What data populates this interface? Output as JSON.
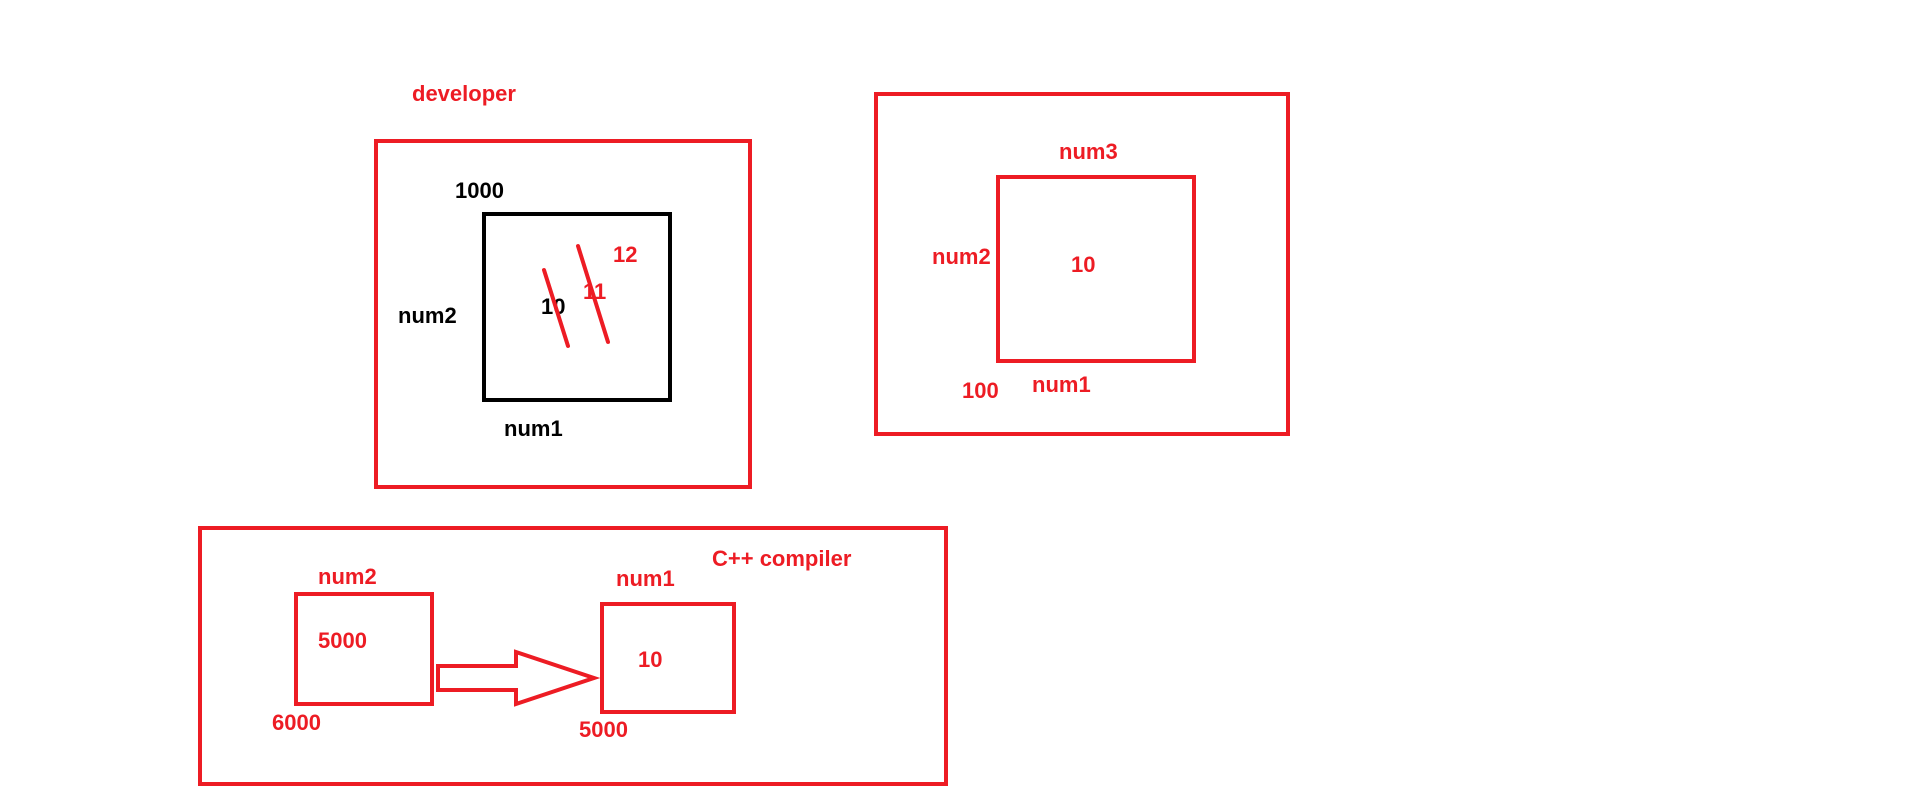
{
  "colors": {
    "red": "#ed1c24",
    "black": "#000000",
    "background": "#ffffff"
  },
  "developer_panel": {
    "title": "developer",
    "address_label": "1000",
    "variable_alias_label": "num2",
    "variable_name_label": "num1",
    "values": {
      "original": "10",
      "first_update": "11",
      "second_update": "12"
    }
  },
  "right_panel": {
    "top_alias_label": "num3",
    "left_alias_label": "num2",
    "variable_name_label": "num1",
    "address_label": "100",
    "value": "10"
  },
  "compiler_panel": {
    "title": "C++ compiler",
    "pointer_box": {
      "name_label": "num2",
      "value": "5000",
      "address_label": "6000"
    },
    "target_box": {
      "name_label": "num1",
      "value": "10",
      "address_label": "5000"
    }
  }
}
